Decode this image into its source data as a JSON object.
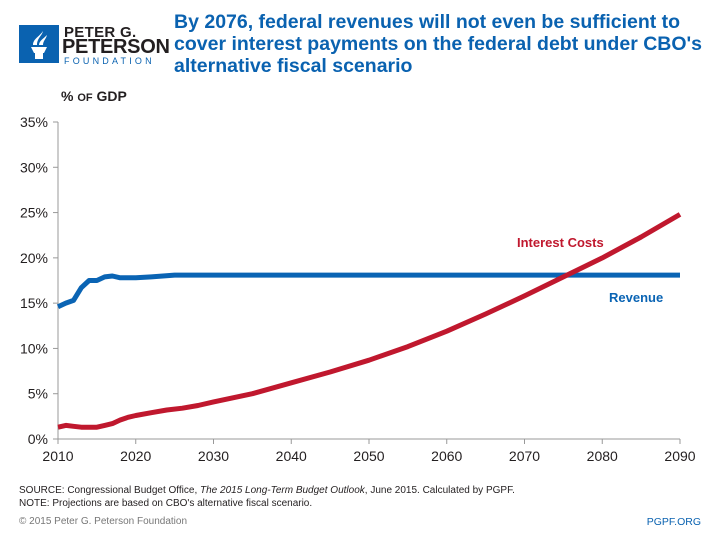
{
  "logo": {
    "line1": "PETER G.",
    "line2": "PETERSON",
    "line3": "FOUNDATION"
  },
  "colors": {
    "revenue": "#0a64b4",
    "interest": "#c0182e",
    "axis": "#999999",
    "brand": "#0a62b0"
  },
  "chart_data": {
    "type": "line",
    "title": "By 2076, federal revenues will not even be sufficient to cover interest payments on the federal debt under CBO's alternative fiscal scenario",
    "ylabel_prefix": "%",
    "ylabel_small": "OF",
    "ylabel_suffix": "GDP",
    "xlim": [
      2010,
      2090
    ],
    "ylim": [
      0,
      35
    ],
    "x_ticks": [
      "2010",
      "2020",
      "2030",
      "2040",
      "2050",
      "2060",
      "2070",
      "2080",
      "2090"
    ],
    "y_ticks": [
      "0%",
      "5%",
      "10%",
      "15%",
      "20%",
      "25%",
      "30%",
      "35%"
    ],
    "grid": false,
    "series": [
      {
        "name": "Revenue",
        "color": "#0a64b4",
        "x": [
          2010,
          2011,
          2012,
          2013,
          2014,
          2015,
          2016,
          2017,
          2018,
          2020,
          2022,
          2025,
          2030,
          2040,
          2050,
          2060,
          2070,
          2080,
          2090
        ],
        "y": [
          14.6,
          15.0,
          15.3,
          16.7,
          17.5,
          17.5,
          17.9,
          18.0,
          17.8,
          17.8,
          17.9,
          18.1,
          18.1,
          18.1,
          18.1,
          18.1,
          18.1,
          18.1,
          18.1
        ]
      },
      {
        "name": "Interest Costs",
        "color": "#c0182e",
        "x": [
          2010,
          2011,
          2012,
          2013,
          2014,
          2015,
          2016,
          2017,
          2018,
          2019,
          2020,
          2022,
          2024,
          2026,
          2028,
          2030,
          2035,
          2040,
          2045,
          2050,
          2055,
          2060,
          2065,
          2070,
          2075,
          2080,
          2085,
          2090
        ],
        "y": [
          1.3,
          1.5,
          1.4,
          1.3,
          1.3,
          1.3,
          1.5,
          1.7,
          2.1,
          2.4,
          2.6,
          2.9,
          3.2,
          3.4,
          3.7,
          4.1,
          5.0,
          6.2,
          7.4,
          8.7,
          10.2,
          11.9,
          13.8,
          15.8,
          17.9,
          20.0,
          22.3,
          24.8
        ]
      }
    ]
  },
  "footer": {
    "source_prefix": "SOURCE: Congressional Budget Office, ",
    "source_title": "The 2015 Long-Term Budget Outlook",
    "source_suffix": ", June 2015. Calculated by PGPF.",
    "note": "NOTE: Projections are based on CBO's alternative fiscal scenario.",
    "copyright": "© 2015 Peter G. Peterson Foundation",
    "site": "PGPF.ORG"
  }
}
